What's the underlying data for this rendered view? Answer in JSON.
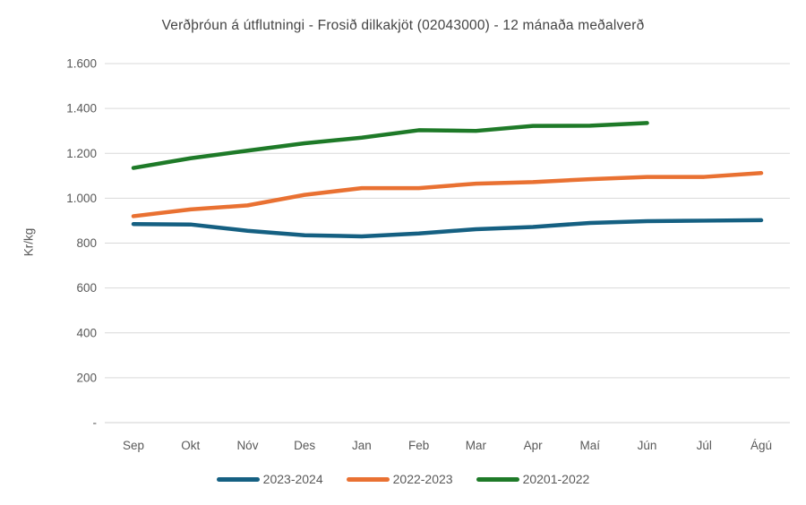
{
  "chart_data": {
    "type": "line",
    "title": "Verðþróun á útflutningi - Frosið dilkakjöt (02043000) - 12 mánaða meðalverð",
    "xlabel": "",
    "ylabel": "Kr/kg",
    "categories": [
      "Sep",
      "Okt",
      "Nóv",
      "Des",
      "Jan",
      "Feb",
      "Mar",
      "Apr",
      "Maí",
      "Jún",
      "Júl",
      "Ágú"
    ],
    "series": [
      {
        "name": "2023-2024",
        "color": "#156082",
        "values": [
          885,
          883,
          855,
          835,
          830,
          843,
          862,
          872,
          890,
          898,
          900,
          902
        ]
      },
      {
        "name": "2022-2023",
        "color": "#E97132",
        "values": [
          920,
          950,
          968,
          1015,
          1045,
          1045,
          1065,
          1072,
          1085,
          1095,
          1095,
          1112
        ]
      },
      {
        "name": "20201-2022",
        "color": "#1E7A28",
        "values": [
          1135,
          1178,
          1212,
          1245,
          1270,
          1303,
          1300,
          1322,
          1323,
          1335,
          null,
          null
        ]
      }
    ],
    "ylim": [
      0,
      1600
    ],
    "ytick_step": 200,
    "ytick_labels": [
      "-",
      "200",
      "400",
      "600",
      "800",
      "1.000",
      "1.200",
      "1.400",
      "1.600"
    ],
    "grid": "horizontal-only",
    "legend_position": "bottom"
  },
  "style": {
    "grid_color": "#D9D9D9",
    "axis_line_color": "#D0D0D0",
    "axis_text_color": "#595959",
    "line_width": 4.5
  }
}
